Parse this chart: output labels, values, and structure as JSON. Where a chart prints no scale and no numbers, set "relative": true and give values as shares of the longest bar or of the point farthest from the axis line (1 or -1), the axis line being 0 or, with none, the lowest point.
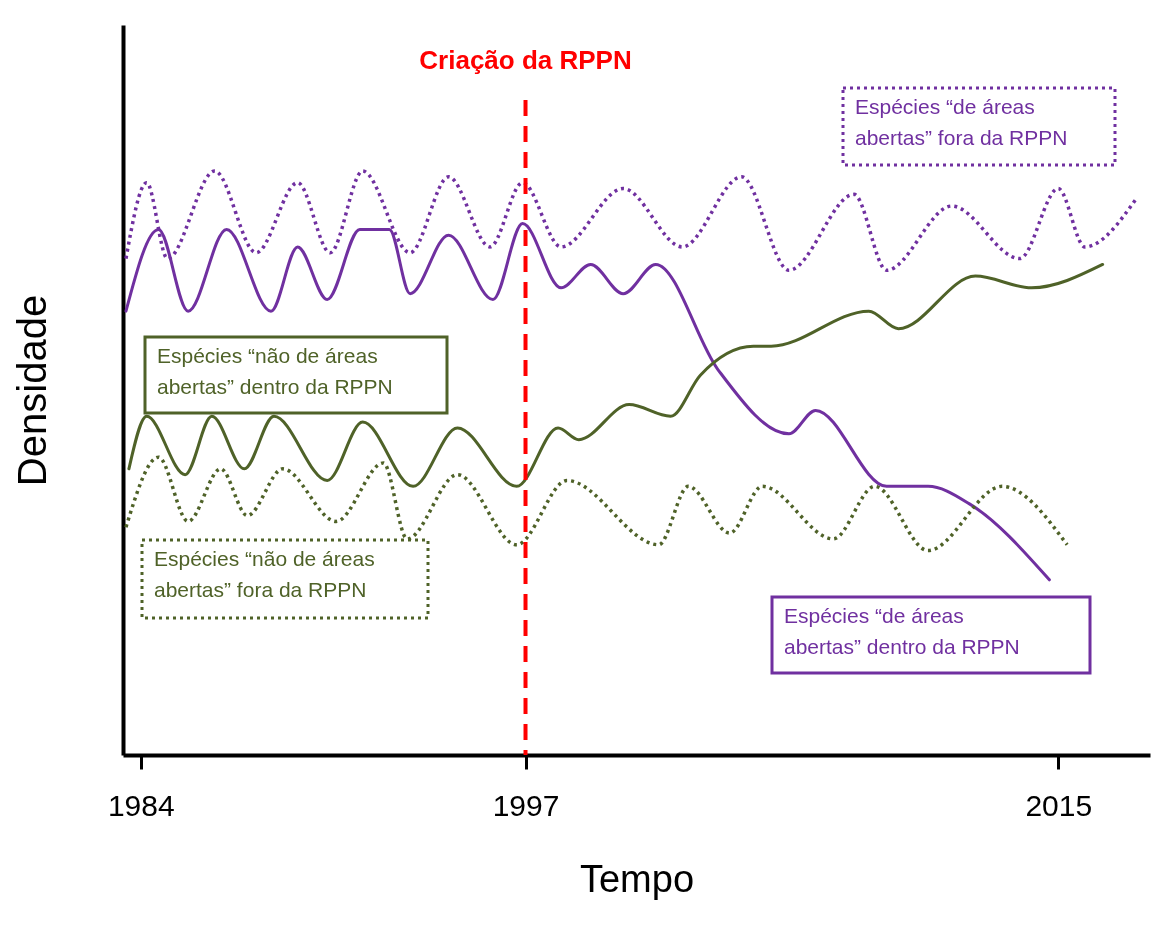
{
  "chart_data": {
    "type": "line",
    "relative": true,
    "xlabel": "Tempo",
    "ylabel": "Densidade",
    "grid": false,
    "xlim": [
      1983.4,
      2018.1
    ],
    "xticks": [
      1984,
      1997,
      2015
    ],
    "ref_lines": [
      {
        "axis": "x",
        "value": 1997,
        "label": "Criação da RPPN",
        "color": "#ff0000",
        "line_style": "dashed"
      }
    ],
    "series": [
      {
        "name": "Espécies “de áreas abertas” fora da RPPN",
        "color": "#7030a0",
        "line_style": "dotted",
        "x": [
          1983.5,
          1984.2,
          1984.9,
          1986.5,
          1987.9,
          1989.3,
          1990.4,
          1991.5,
          1993.1,
          1994.4,
          1995.8,
          1996.9,
          1998.2,
          2000.3,
          2002.3,
          2004.3,
          2005.9,
          2008.1,
          2009.2,
          2011.4,
          2013.7,
          2015.0,
          2015.9,
          2017.6
        ],
        "values": [
          0.85,
          0.98,
          0.85,
          1.0,
          0.86,
          0.98,
          0.86,
          1.0,
          0.86,
          0.99,
          0.87,
          0.98,
          0.87,
          0.97,
          0.87,
          0.99,
          0.83,
          0.96,
          0.83,
          0.94,
          0.85,
          0.97,
          0.87,
          0.95
        ]
      },
      {
        "name": "Espécies “de áreas abertas” dentro da RPPN",
        "color": "#7030a0",
        "line_style": "solid",
        "x": [
          1983.5,
          1984.6,
          1985.6,
          1986.9,
          1988.4,
          1989.3,
          1990.3,
          1991.4,
          1992.4,
          1993.1,
          1994.4,
          1995.9,
          1996.9,
          1998.2,
          1999.2,
          2000.3,
          2001.4,
          2003.5,
          2005.9,
          2006.8,
          2009.2,
          2010.6,
          2012.0,
          2014.7
        ],
        "values": [
          0.76,
          0.9,
          0.76,
          0.9,
          0.76,
          0.87,
          0.78,
          0.9,
          0.9,
          0.79,
          0.89,
          0.78,
          0.91,
          0.8,
          0.84,
          0.79,
          0.84,
          0.66,
          0.55,
          0.59,
          0.46,
          0.46,
          0.43,
          0.3
        ]
      },
      {
        "name": "Espécies “não de áreas abertas” dentro da RPPN",
        "color": "#4f6228",
        "line_style": "solid",
        "x": [
          1983.6,
          1984.2,
          1985.5,
          1986.4,
          1987.5,
          1988.5,
          1990.3,
          1991.5,
          1993.2,
          1994.7,
          1996.7,
          1998.1,
          1998.8,
          2000.5,
          2001.9,
          2002.9,
          2004.7,
          2005.3,
          2008.6,
          2009.6,
          2012.2,
          2014.1,
          2016.5
        ],
        "values": [
          0.49,
          0.58,
          0.48,
          0.58,
          0.49,
          0.58,
          0.47,
          0.57,
          0.46,
          0.56,
          0.46,
          0.56,
          0.54,
          0.6,
          0.58,
          0.65,
          0.7,
          0.7,
          0.76,
          0.73,
          0.82,
          0.8,
          0.84
        ]
      },
      {
        "name": "Espécies “não de áreas abertas” fora da RPPN",
        "color": "#4f6228",
        "line_style": "dotted",
        "x": [
          1983.5,
          1984.6,
          1985.6,
          1986.7,
          1987.6,
          1988.8,
          1990.6,
          1992.2,
          1993.0,
          1994.7,
          1996.7,
          1998.4,
          2001.5,
          2002.5,
          2003.9,
          2005.0,
          2007.4,
          2008.8,
          2010.6,
          2013.1,
          2015.3
        ],
        "values": [
          0.39,
          0.51,
          0.4,
          0.49,
          0.41,
          0.49,
          0.4,
          0.5,
          0.37,
          0.48,
          0.36,
          0.47,
          0.36,
          0.46,
          0.38,
          0.46,
          0.37,
          0.46,
          0.35,
          0.46,
          0.36
        ]
      }
    ]
  }
}
